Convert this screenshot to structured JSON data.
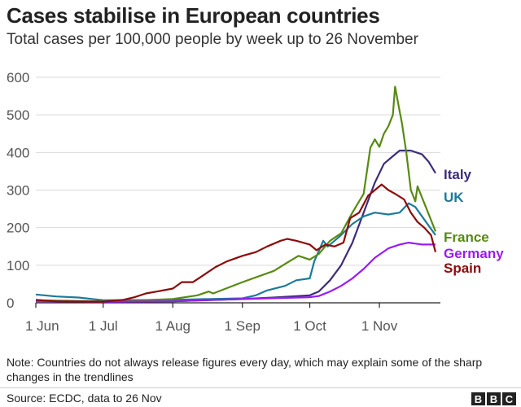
{
  "chart_data": {
    "type": "line",
    "title": "Cases stabilise in European countries",
    "subtitle": "Total cases per 100,000 people by week up to 26 November",
    "x_range": [
      "2020-06-01",
      "2020-11-26"
    ],
    "x_ticks": [
      {
        "date": "2020-06-01",
        "label": "1 Jun"
      },
      {
        "date": "2020-07-01",
        "label": "1 Jul"
      },
      {
        "date": "2020-08-01",
        "label": "1 Aug"
      },
      {
        "date": "2020-09-01",
        "label": "1 Sep"
      },
      {
        "date": "2020-10-01",
        "label": "1 Oct"
      },
      {
        "date": "2020-11-01",
        "label": "1 Nov"
      }
    ],
    "ylim": [
      0,
      600
    ],
    "y_ticks": [
      0,
      100,
      200,
      300,
      400,
      500,
      600
    ],
    "grid": "horizontal",
    "legend": "direct labels at line ends (right)",
    "series": [
      {
        "name": "Italy",
        "color": "#3d2c7a",
        "points": [
          [
            "2020-06-01",
            6
          ],
          [
            "2020-07-01",
            3
          ],
          [
            "2020-08-01",
            4
          ],
          [
            "2020-09-01",
            10
          ],
          [
            "2020-09-15",
            14
          ],
          [
            "2020-10-01",
            20
          ],
          [
            "2020-10-05",
            30
          ],
          [
            "2020-10-10",
            60
          ],
          [
            "2020-10-15",
            100
          ],
          [
            "2020-10-20",
            160
          ],
          [
            "2020-10-25",
            240
          ],
          [
            "2020-10-30",
            320
          ],
          [
            "2020-11-03",
            370
          ],
          [
            "2020-11-07",
            390
          ],
          [
            "2020-11-10",
            405
          ],
          [
            "2020-11-15",
            405
          ],
          [
            "2020-11-20",
            395
          ],
          [
            "2020-11-23",
            375
          ],
          [
            "2020-11-26",
            345
          ]
        ]
      },
      {
        "name": "UK",
        "color": "#1d7a9a",
        "points": [
          [
            "2020-06-01",
            22
          ],
          [
            "2020-06-10",
            17
          ],
          [
            "2020-06-20",
            14
          ],
          [
            "2020-07-01",
            7
          ],
          [
            "2020-08-01",
            8
          ],
          [
            "2020-09-01",
            12
          ],
          [
            "2020-09-07",
            20
          ],
          [
            "2020-09-12",
            33
          ],
          [
            "2020-09-20",
            45
          ],
          [
            "2020-09-25",
            60
          ],
          [
            "2020-10-01",
            65
          ],
          [
            "2020-10-03",
            110
          ],
          [
            "2020-10-07",
            165
          ],
          [
            "2020-10-09",
            150
          ],
          [
            "2020-10-14",
            175
          ],
          [
            "2020-10-20",
            210
          ],
          [
            "2020-10-25",
            230
          ],
          [
            "2020-10-30",
            240
          ],
          [
            "2020-11-05",
            235
          ],
          [
            "2020-11-10",
            240
          ],
          [
            "2020-11-14",
            265
          ],
          [
            "2020-11-17",
            255
          ],
          [
            "2020-11-20",
            230
          ],
          [
            "2020-11-26",
            180
          ]
        ]
      },
      {
        "name": "France",
        "color": "#588a12",
        "points": [
          [
            "2020-06-01",
            7
          ],
          [
            "2020-07-01",
            4
          ],
          [
            "2020-07-15",
            6
          ],
          [
            "2020-08-01",
            10
          ],
          [
            "2020-08-12",
            20
          ],
          [
            "2020-08-17",
            30
          ],
          [
            "2020-08-19",
            25
          ],
          [
            "2020-09-01",
            55
          ],
          [
            "2020-09-15",
            85
          ],
          [
            "2020-09-21",
            107
          ],
          [
            "2020-09-26",
            125
          ],
          [
            "2020-10-01",
            115
          ],
          [
            "2020-10-05",
            130
          ],
          [
            "2020-10-10",
            165
          ],
          [
            "2020-10-15",
            185
          ],
          [
            "2020-10-20",
            240
          ],
          [
            "2020-10-25",
            290
          ],
          [
            "2020-10-28",
            413
          ],
          [
            "2020-10-30",
            435
          ],
          [
            "2020-11-01",
            415
          ],
          [
            "2020-11-03",
            450
          ],
          [
            "2020-11-05",
            470
          ],
          [
            "2020-11-07",
            500
          ],
          [
            "2020-11-08",
            575
          ],
          [
            "2020-11-10",
            510
          ],
          [
            "2020-11-11",
            480
          ],
          [
            "2020-11-13",
            400
          ],
          [
            "2020-11-15",
            300
          ],
          [
            "2020-11-17",
            270
          ],
          [
            "2020-11-18",
            310
          ],
          [
            "2020-11-20",
            280
          ],
          [
            "2020-11-22",
            250
          ],
          [
            "2020-11-24",
            220
          ],
          [
            "2020-11-26",
            190
          ]
        ]
      },
      {
        "name": "Germany",
        "color": "#9a1cf0",
        "points": [
          [
            "2020-06-01",
            4
          ],
          [
            "2020-07-01",
            3
          ],
          [
            "2020-08-01",
            4
          ],
          [
            "2020-08-15",
            7
          ],
          [
            "2020-09-01",
            10
          ],
          [
            "2020-10-01",
            15
          ],
          [
            "2020-10-05",
            18
          ],
          [
            "2020-10-10",
            30
          ],
          [
            "2020-10-15",
            45
          ],
          [
            "2020-10-20",
            65
          ],
          [
            "2020-10-25",
            90
          ],
          [
            "2020-10-30",
            120
          ],
          [
            "2020-11-05",
            145
          ],
          [
            "2020-11-10",
            155
          ],
          [
            "2020-11-14",
            160
          ],
          [
            "2020-11-20",
            155
          ],
          [
            "2020-11-26",
            155
          ]
        ]
      },
      {
        "name": "Spain",
        "color": "#8c0b0b",
        "points": [
          [
            "2020-06-01",
            8
          ],
          [
            "2020-06-10",
            4
          ],
          [
            "2020-07-01",
            3
          ],
          [
            "2020-07-10",
            8
          ],
          [
            "2020-07-15",
            15
          ],
          [
            "2020-07-20",
            25
          ],
          [
            "2020-07-25",
            30
          ],
          [
            "2020-08-01",
            38
          ],
          [
            "2020-08-05",
            55
          ],
          [
            "2020-08-10",
            55
          ],
          [
            "2020-08-15",
            75
          ],
          [
            "2020-08-20",
            95
          ],
          [
            "2020-08-25",
            110
          ],
          [
            "2020-09-01",
            125
          ],
          [
            "2020-09-07",
            135
          ],
          [
            "2020-09-12",
            150
          ],
          [
            "2020-09-18",
            165
          ],
          [
            "2020-09-21",
            170
          ],
          [
            "2020-09-25",
            165
          ],
          [
            "2020-10-01",
            155
          ],
          [
            "2020-10-04",
            140
          ],
          [
            "2020-10-08",
            155
          ],
          [
            "2020-10-12",
            150
          ],
          [
            "2020-10-16",
            160
          ],
          [
            "2020-10-19",
            225
          ],
          [
            "2020-10-23",
            240
          ],
          [
            "2020-10-27",
            285
          ],
          [
            "2020-10-30",
            300
          ],
          [
            "2020-11-02",
            315
          ],
          [
            "2020-11-05",
            300
          ],
          [
            "2020-11-08",
            290
          ],
          [
            "2020-11-12",
            275
          ],
          [
            "2020-11-15",
            240
          ],
          [
            "2020-11-18",
            215
          ],
          [
            "2020-11-21",
            200
          ],
          [
            "2020-11-24",
            180
          ],
          [
            "2020-11-26",
            135
          ]
        ]
      }
    ]
  },
  "note": "Note: Countries do not always release figures every day, which may explain some of the sharp changes in the trendlines",
  "source": "Source: ECDC, data to 26 Nov",
  "logo": [
    "B",
    "B",
    "C"
  ]
}
